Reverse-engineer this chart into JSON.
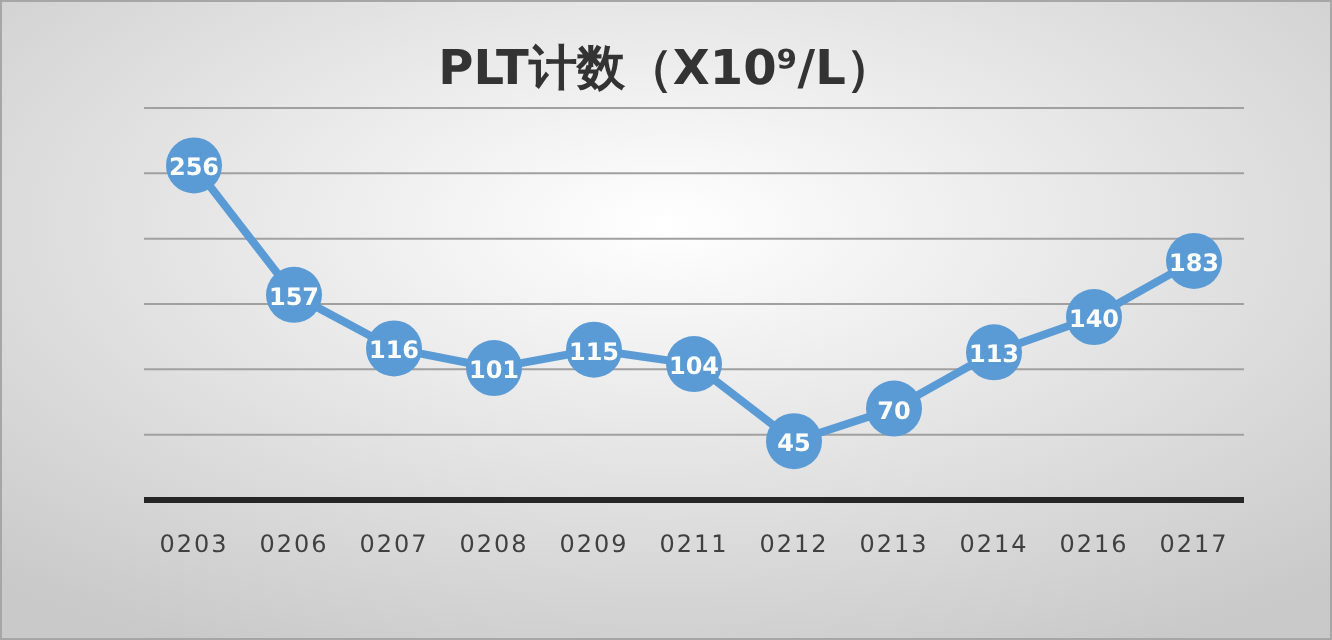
{
  "chart_data": {
    "type": "line",
    "title": "PLT计数（X10⁹/L）",
    "categories": [
      "0203",
      "0206",
      "0207",
      "0208",
      "0209",
      "0211",
      "0212",
      "0213",
      "0214",
      "0216",
      "0217"
    ],
    "series": [
      {
        "color": "#5b9bd5",
        "values": [
          256,
          157,
          116,
          101,
          115,
          104,
          45,
          70,
          113,
          140,
          183
        ]
      }
    ],
    "ylim": [
      0,
      300
    ],
    "yticks": [
      {
        "value": 50,
        "label": null
      },
      {
        "value": 100,
        "label": null
      },
      {
        "value": 150,
        "label": null
      },
      {
        "value": 200,
        "label": null
      },
      {
        "value": 250,
        "label": null
      },
      {
        "value": 300,
        "label": null
      }
    ],
    "grid": "y",
    "tick_labels": "x",
    "marker": "circle",
    "line_style": "solid",
    "data_labels": true
  }
}
